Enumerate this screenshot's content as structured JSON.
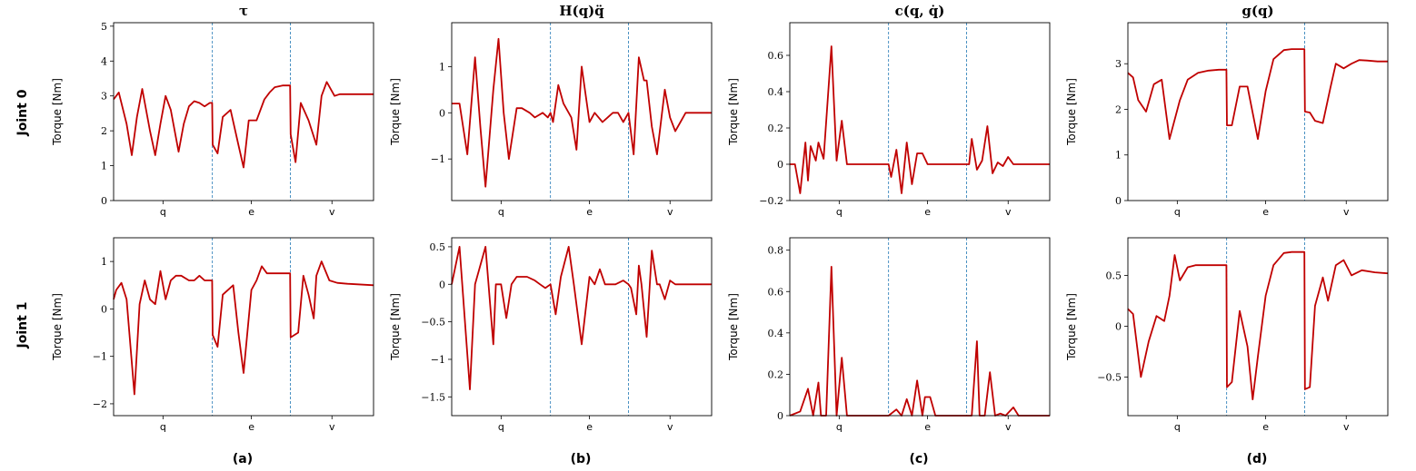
{
  "figure": {
    "row_labels": [
      "Joint 0",
      "Joint 1"
    ],
    "panel_labels": [
      "(a)",
      "(b)",
      "(c)",
      "(d)"
    ],
    "ylabel": "Torque [Nm]",
    "segments": [
      "q",
      "e",
      "v"
    ]
  },
  "colors": {
    "series": "#c00000",
    "divider": "#1f77b4",
    "axis": "#000000"
  },
  "chart_data": [
    {
      "type": "line",
      "title": "τ",
      "row": "Joint 0",
      "xlabel": "",
      "ylabel": "Torque [Nm]",
      "x_categories": [
        "q",
        "e",
        "v"
      ],
      "ylim": [
        0,
        5.1
      ],
      "yticks": [
        0,
        1,
        2,
        3,
        4,
        5
      ],
      "segment_boundaries": [
        0.38,
        0.68
      ],
      "series": [
        {
          "x": [
            0,
            0.02,
            0.05,
            0.07,
            0.09,
            0.11,
            0.14,
            0.16,
            0.18,
            0.2,
            0.22,
            0.25,
            0.27,
            0.29,
            0.31,
            0.33,
            0.35,
            0.37,
            0.379,
            0.381,
            0.4,
            0.42,
            0.45,
            0.48,
            0.5,
            0.52,
            0.55,
            0.58,
            0.6,
            0.62,
            0.65,
            0.679,
            0.681,
            0.7,
            0.72,
            0.75,
            0.78,
            0.8,
            0.82,
            0.85,
            0.87,
            0.9,
            0.92,
            0.95,
            1.0
          ],
          "y": [
            2.9,
            3.1,
            2.2,
            1.3,
            2.4,
            3.2,
            2.0,
            1.3,
            2.2,
            3.0,
            2.6,
            1.4,
            2.2,
            2.7,
            2.85,
            2.8,
            2.7,
            2.8,
            2.8,
            1.6,
            1.35,
            2.4,
            2.6,
            1.6,
            0.95,
            2.3,
            2.3,
            2.9,
            3.1,
            3.25,
            3.3,
            3.3,
            1.9,
            1.1,
            2.8,
            2.3,
            1.6,
            3.0,
            3.4,
            3.0,
            3.05,
            3.05,
            3.05,
            3.05,
            3.05
          ]
        }
      ]
    },
    {
      "type": "line",
      "title": "H(q)q̈",
      "row": "Joint 0",
      "xlabel": "",
      "ylabel": "Torque [Nm]",
      "x_categories": [
        "q",
        "e",
        "v"
      ],
      "ylim": [
        -1.9,
        1.95
      ],
      "yticks": [
        -1,
        0,
        1
      ],
      "segment_boundaries": [
        0.38,
        0.68
      ],
      "series": [
        {
          "x": [
            0,
            0.03,
            0.06,
            0.09,
            0.11,
            0.13,
            0.16,
            0.18,
            0.2,
            0.22,
            0.25,
            0.27,
            0.3,
            0.32,
            0.35,
            0.37,
            0.38,
            0.39,
            0.41,
            0.43,
            0.46,
            0.48,
            0.5,
            0.53,
            0.55,
            0.58,
            0.6,
            0.62,
            0.64,
            0.66,
            0.68,
            0.7,
            0.72,
            0.74,
            0.75,
            0.77,
            0.79,
            0.82,
            0.84,
            0.86,
            0.88,
            0.9,
            0.93,
            0.95,
            0.97,
            1.0
          ],
          "y": [
            0.2,
            0.2,
            -0.9,
            1.2,
            -0.3,
            -1.6,
            0.5,
            1.6,
            0.0,
            -1.0,
            0.1,
            0.1,
            0.0,
            -0.1,
            0.0,
            -0.1,
            0.0,
            -0.2,
            0.6,
            0.2,
            -0.1,
            -0.8,
            1.0,
            -0.2,
            0.0,
            -0.2,
            -0.1,
            0.0,
            0.0,
            -0.2,
            0.0,
            -0.9,
            1.2,
            0.7,
            0.7,
            -0.3,
            -0.9,
            0.5,
            -0.1,
            -0.4,
            -0.2,
            0.0,
            0.0,
            0.0,
            0.0,
            0.0
          ]
        }
      ]
    },
    {
      "type": "line",
      "title": "c(q, q̇)",
      "row": "Joint 0",
      "xlabel": "",
      "ylabel": "Torque [Nm]",
      "x_categories": [
        "q",
        "e",
        "v"
      ],
      "ylim": [
        -0.2,
        0.78
      ],
      "yticks": [
        -0.2,
        0.0,
        0.2,
        0.4,
        0.6
      ],
      "segment_boundaries": [
        0.38,
        0.68
      ],
      "series": [
        {
          "x": [
            0,
            0.02,
            0.04,
            0.06,
            0.07,
            0.08,
            0.1,
            0.11,
            0.13,
            0.16,
            0.18,
            0.2,
            0.22,
            0.25,
            0.26,
            0.28,
            0.3,
            0.34,
            0.38,
            0.39,
            0.41,
            0.43,
            0.45,
            0.47,
            0.49,
            0.51,
            0.53,
            0.56,
            0.59,
            0.63,
            0.68,
            0.69,
            0.7,
            0.72,
            0.74,
            0.76,
            0.78,
            0.8,
            0.82,
            0.84,
            0.86,
            0.88,
            0.9,
            0.93,
            0.96,
            1.0
          ],
          "y": [
            0.0,
            0.0,
            -0.16,
            0.12,
            -0.09,
            0.1,
            0.02,
            0.12,
            0.03,
            0.65,
            0.02,
            0.24,
            0.0,
            0.0,
            0.0,
            0.0,
            0.0,
            0.0,
            0.0,
            -0.07,
            0.08,
            -0.16,
            0.12,
            -0.11,
            0.06,
            0.06,
            0.0,
            0.0,
            0.0,
            0.0,
            0.0,
            0.0,
            0.14,
            -0.03,
            0.02,
            0.21,
            -0.05,
            0.01,
            -0.01,
            0.04,
            0.0,
            0.0,
            0.0,
            0.0,
            0.0,
            0.0
          ]
        }
      ]
    },
    {
      "type": "line",
      "title": "g(q)",
      "row": "Joint 0",
      "xlabel": "",
      "ylabel": "Torque [Nm]",
      "x_categories": [
        "q",
        "e",
        "v"
      ],
      "ylim": [
        0,
        3.9
      ],
      "yticks": [
        0,
        1,
        2,
        3
      ],
      "segment_boundaries": [
        0.38,
        0.68
      ],
      "series": [
        {
          "x": [
            0,
            0.02,
            0.04,
            0.07,
            0.1,
            0.13,
            0.16,
            0.2,
            0.23,
            0.27,
            0.31,
            0.35,
            0.379,
            0.381,
            0.4,
            0.43,
            0.46,
            0.5,
            0.53,
            0.56,
            0.6,
            0.63,
            0.66,
            0.679,
            0.681,
            0.7,
            0.72,
            0.75,
            0.78,
            0.8,
            0.83,
            0.86,
            0.89,
            0.92,
            0.96,
            1.0
          ],
          "y": [
            2.8,
            2.7,
            2.2,
            1.95,
            2.55,
            2.65,
            1.35,
            2.2,
            2.65,
            2.8,
            2.85,
            2.87,
            2.87,
            1.65,
            1.65,
            2.5,
            2.5,
            1.35,
            2.4,
            3.1,
            3.3,
            3.32,
            3.32,
            3.32,
            1.95,
            1.93,
            1.75,
            1.7,
            2.5,
            3.0,
            2.9,
            3.0,
            3.08,
            3.07,
            3.05,
            3.05
          ]
        }
      ]
    },
    {
      "type": "line",
      "title": "",
      "row": "Joint 1",
      "xlabel": "",
      "ylabel": "Torque [Nm]",
      "x_categories": [
        "q",
        "e",
        "v"
      ],
      "ylim": [
        -2.25,
        1.5
      ],
      "yticks": [
        -2,
        -1,
        0,
        1
      ],
      "segment_boundaries": [
        0.38,
        0.68
      ],
      "series": [
        {
          "x": [
            0,
            0.01,
            0.03,
            0.05,
            0.08,
            0.1,
            0.12,
            0.14,
            0.16,
            0.18,
            0.2,
            0.22,
            0.24,
            0.26,
            0.29,
            0.31,
            0.33,
            0.35,
            0.37,
            0.379,
            0.381,
            0.4,
            0.42,
            0.46,
            0.48,
            0.5,
            0.53,
            0.55,
            0.57,
            0.59,
            0.6,
            0.62,
            0.65,
            0.679,
            0.681,
            0.71,
            0.73,
            0.75,
            0.77,
            0.78,
            0.8,
            0.83,
            0.86,
            0.9,
            1.0
          ],
          "y": [
            0.2,
            0.4,
            0.55,
            0.2,
            -1.8,
            0.1,
            0.6,
            0.2,
            0.1,
            0.8,
            0.2,
            0.6,
            0.7,
            0.7,
            0.6,
            0.6,
            0.7,
            0.6,
            0.6,
            0.6,
            -0.55,
            -0.8,
            0.3,
            0.5,
            -0.5,
            -1.35,
            0.4,
            0.6,
            0.9,
            0.75,
            0.75,
            0.75,
            0.75,
            0.75,
            -0.6,
            -0.5,
            0.7,
            0.3,
            -0.2,
            0.7,
            1.0,
            0.6,
            0.55,
            0.53,
            0.5
          ]
        }
      ]
    },
    {
      "type": "line",
      "title": "",
      "row": "Joint 1",
      "xlabel": "",
      "ylabel": "Torque [Nm]",
      "x_categories": [
        "q",
        "e",
        "v"
      ],
      "ylim": [
        -1.75,
        0.62
      ],
      "yticks": [
        -1.5,
        -1.0,
        -0.5,
        0.0,
        0.5
      ],
      "segment_boundaries": [
        0.38,
        0.68
      ],
      "series": [
        {
          "x": [
            0,
            0.03,
            0.07,
            0.09,
            0.13,
            0.16,
            0.17,
            0.19,
            0.21,
            0.23,
            0.25,
            0.27,
            0.29,
            0.32,
            0.34,
            0.36,
            0.38,
            0.4,
            0.42,
            0.45,
            0.47,
            0.5,
            0.53,
            0.55,
            0.57,
            0.59,
            0.61,
            0.63,
            0.66,
            0.68,
            0.69,
            0.71,
            0.72,
            0.73,
            0.75,
            0.77,
            0.79,
            0.8,
            0.82,
            0.84,
            0.86,
            0.88,
            0.9,
            0.95,
            1.0
          ],
          "y": [
            0.0,
            0.5,
            -1.4,
            0.0,
            0.5,
            -0.8,
            0.0,
            0.0,
            -0.45,
            0.0,
            0.1,
            0.1,
            0.1,
            0.05,
            0.0,
            -0.05,
            0.0,
            -0.4,
            0.1,
            0.5,
            0.0,
            -0.8,
            0.1,
            0.0,
            0.2,
            0.0,
            0.0,
            0.0,
            0.05,
            0.0,
            -0.05,
            -0.4,
            0.25,
            0.0,
            -0.7,
            0.45,
            0.0,
            0.0,
            -0.2,
            0.05,
            0.0,
            0.0,
            0.0,
            0.0,
            0.0
          ]
        }
      ]
    },
    {
      "type": "line",
      "title": "",
      "row": "Joint 1",
      "xlabel": "",
      "ylabel": "Torque [Nm]",
      "x_categories": [
        "q",
        "e",
        "v"
      ],
      "ylim": [
        0,
        0.86
      ],
      "yticks": [
        0.0,
        0.2,
        0.4,
        0.6,
        0.8
      ],
      "segment_boundaries": [
        0.38,
        0.68
      ],
      "series": [
        {
          "x": [
            0,
            0.04,
            0.07,
            0.09,
            0.11,
            0.12,
            0.14,
            0.16,
            0.18,
            0.2,
            0.22,
            0.25,
            0.3,
            0.35,
            0.38,
            0.41,
            0.43,
            0.45,
            0.47,
            0.49,
            0.51,
            0.52,
            0.54,
            0.56,
            0.58,
            0.6,
            0.63,
            0.66,
            0.68,
            0.7,
            0.72,
            0.73,
            0.75,
            0.77,
            0.79,
            0.81,
            0.83,
            0.86,
            0.88,
            0.9,
            0.95,
            1.0
          ],
          "y": [
            0.0,
            0.02,
            0.13,
            0.0,
            0.16,
            0.0,
            0.0,
            0.72,
            0.0,
            0.28,
            0.0,
            0.0,
            0.0,
            0.0,
            0.0,
            0.03,
            0.0,
            0.08,
            0.0,
            0.17,
            0.0,
            0.09,
            0.09,
            0.0,
            0.0,
            0.0,
            0.0,
            0.0,
            0.0,
            0.0,
            0.36,
            0.0,
            0.0,
            0.21,
            0.0,
            0.01,
            0.0,
            0.04,
            0.0,
            0.0,
            0.0,
            0.0
          ]
        }
      ]
    },
    {
      "type": "line",
      "title": "",
      "row": "Joint 1",
      "xlabel": "",
      "ylabel": "Torque [Nm]",
      "x_categories": [
        "q",
        "e",
        "v"
      ],
      "ylim": [
        -0.88,
        0.87
      ],
      "yticks": [
        -0.5,
        0.0,
        0.5
      ],
      "segment_boundaries": [
        0.38,
        0.68
      ],
      "series": [
        {
          "x": [
            0,
            0.02,
            0.05,
            0.08,
            0.11,
            0.14,
            0.16,
            0.18,
            0.2,
            0.23,
            0.26,
            0.28,
            0.31,
            0.34,
            0.36,
            0.379,
            0.381,
            0.4,
            0.43,
            0.46,
            0.48,
            0.5,
            0.53,
            0.56,
            0.6,
            0.63,
            0.66,
            0.679,
            0.681,
            0.7,
            0.72,
            0.75,
            0.77,
            0.8,
            0.83,
            0.86,
            0.9,
            0.95,
            1.0
          ],
          "y": [
            0.17,
            0.12,
            -0.5,
            -0.15,
            0.1,
            0.05,
            0.3,
            0.7,
            0.45,
            0.58,
            0.6,
            0.6,
            0.6,
            0.6,
            0.6,
            0.6,
            -0.6,
            -0.55,
            0.15,
            -0.2,
            -0.72,
            -0.3,
            0.3,
            0.6,
            0.72,
            0.73,
            0.73,
            0.73,
            -0.62,
            -0.6,
            0.2,
            0.48,
            0.25,
            0.6,
            0.65,
            0.5,
            0.55,
            0.53,
            0.52
          ]
        }
      ]
    }
  ]
}
